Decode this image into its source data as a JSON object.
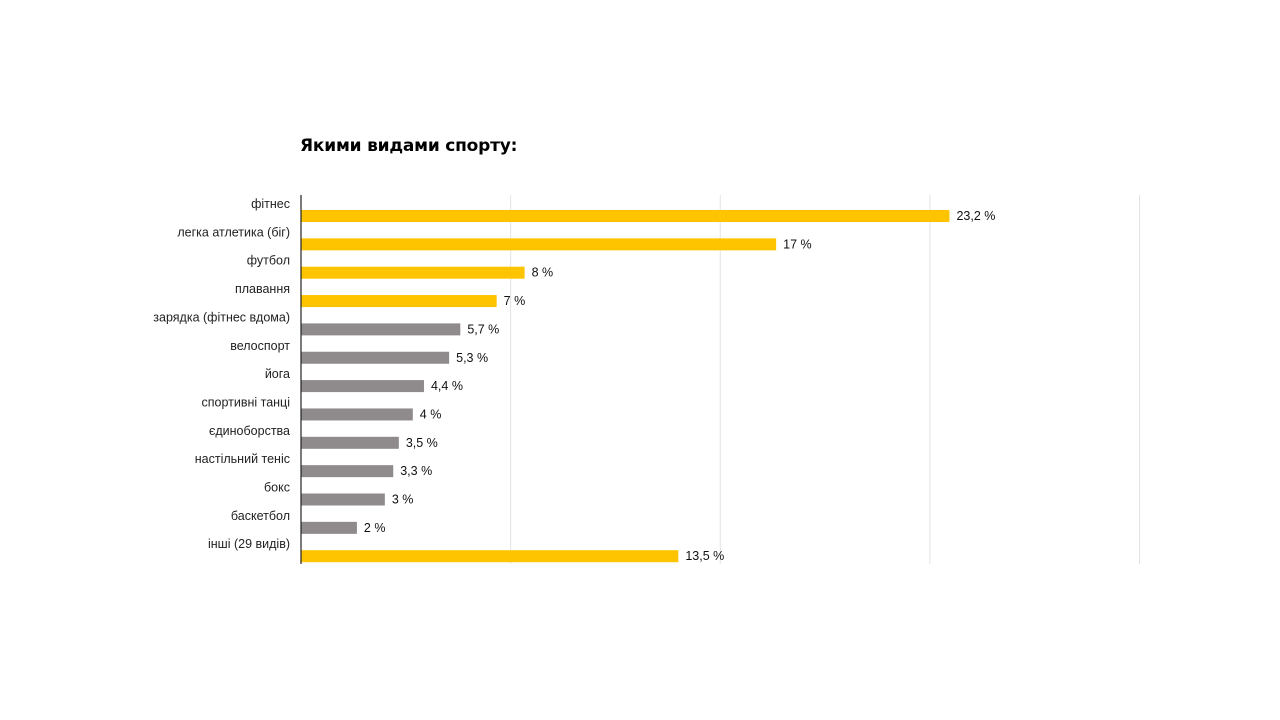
{
  "chart_data": {
    "type": "bar",
    "orientation": "horizontal",
    "title": "Якими видами спорту:",
    "xlabel": "",
    "ylabel": "",
    "xlim": [
      0,
      40
    ],
    "grid": true,
    "categories": [
      "фітнес",
      "легка атлетика (біг)",
      "футбол",
      "плавання",
      "зарядка (фітнес вдома)",
      "велоспорт",
      "йога",
      "спортивні танці",
      "єдиноборства",
      "настільний теніс",
      "бокс",
      "баскетбол",
      "інші (29 видів)"
    ],
    "values": [
      23.2,
      17,
      8,
      7,
      5.7,
      5.3,
      4.4,
      4,
      3.5,
      3.3,
      3,
      2,
      13.5
    ],
    "value_labels": [
      "23,2 %",
      "17 %",
      "8 %",
      "7 %",
      "5,7 %",
      "5,3 %",
      "4,4 %",
      "4 %",
      "3,5 %",
      "3,3 %",
      "3 %",
      "2 %",
      "13,5 %"
    ],
    "highlighted": [
      true,
      true,
      true,
      true,
      false,
      false,
      false,
      false,
      false,
      false,
      false,
      false,
      true
    ],
    "colors": {
      "highlight": "#FFC400",
      "normal": "#8F8B8C",
      "axis": "#222222",
      "grid": "#E3E3E3"
    }
  }
}
